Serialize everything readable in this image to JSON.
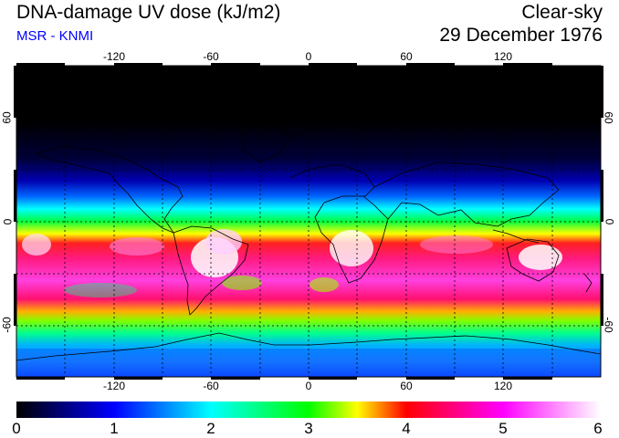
{
  "header": {
    "title": "DNA-damage UV dose (kJ/m2)",
    "source": "MSR - KNMI",
    "condition": "Clear-sky",
    "date": "29 December 1976"
  },
  "map": {
    "lon_ticks": [
      "-120",
      "-60",
      "0",
      "60",
      "120"
    ],
    "lat_ticks": [
      "60",
      "0",
      "-60"
    ],
    "projection": "equirectangular",
    "grid": "dotted 30-degree graticule"
  },
  "colorbar": {
    "labels": [
      "0",
      "1",
      "2",
      "3",
      "4",
      "5",
      "6"
    ],
    "min": 0,
    "max": 6,
    "colors": [
      "#000000",
      "#0000ff",
      "#00ffff",
      "#00ff00",
      "#ffff00",
      "#ff0000",
      "#ff00ff",
      "#ffffff"
    ]
  }
}
